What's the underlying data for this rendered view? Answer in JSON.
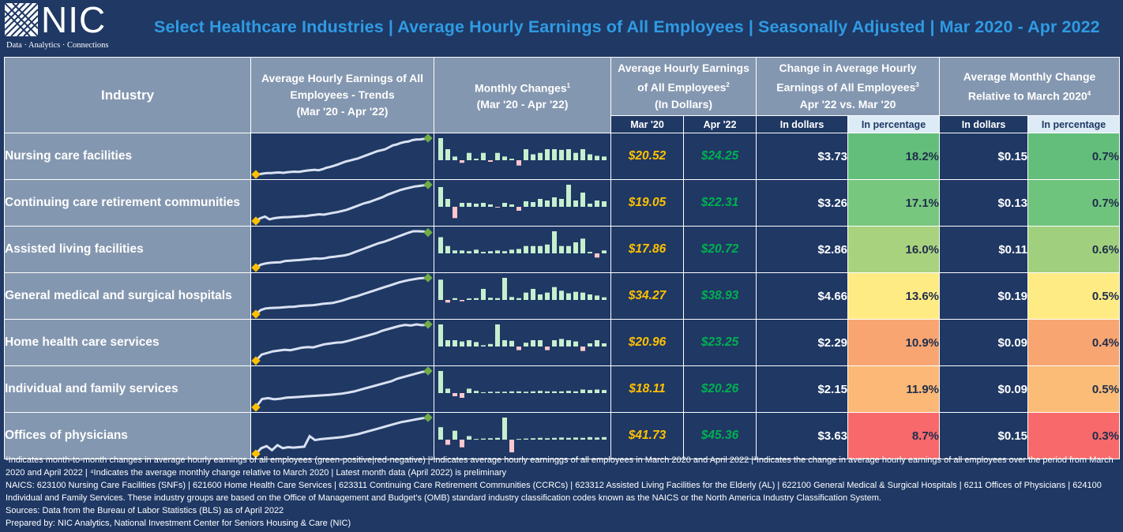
{
  "logo": {
    "name": "NIC",
    "tagline": "Data · Analytics · Connections"
  },
  "title": "Select Healthcare Industries | Average Hourly Earnings of All Employees | Seasonally Adjusted | Mar 2020 - Apr 2022",
  "headers": {
    "industry": "Industry",
    "trends_line1": "Average Hourly Earnings of All",
    "trends_line2": "Employees - Trends",
    "trends_line3": "(Mar '20 - Apr '22)",
    "monthly_line1": "Monthly Changes",
    "monthly_sup": "1",
    "monthly_line2": "(Mar '20 - Apr '22)",
    "avg_line1": "Average Hourly Earnings",
    "avg_line2": "of All Employees",
    "avg_sup": "2",
    "avg_line3": "(In Dollars)",
    "change_line1": "Change in Average Hourly",
    "change_line2": "Earnings of All Employees",
    "change_sup": "3",
    "change_line3": "Apr '22 vs. Mar '20",
    "monthly_change_line1": "Average Monthly Change",
    "monthly_change_line2": "Relative to March 2020",
    "monthly_change_sup": "4",
    "sub_mar": "Mar '20",
    "sub_apr": "Apr '22",
    "sub_dollars": "In dollars",
    "sub_pct": "In percentage",
    "sub_dollars2": "In dollars",
    "sub_pct2": "In percentage"
  },
  "colors": {
    "background": "#1f3864",
    "header_gray": "#8497b0",
    "title_blue": "#2f9be3",
    "mar_gold": "#ffc000",
    "apr_green": "#00b050",
    "bar_positive": "#c6efce",
    "bar_negative": "#ffc7ce",
    "spark_line": "#d9e1f2",
    "start_marker": "#ffc000",
    "end_marker": "#70ad47"
  },
  "rows": [
    {
      "industry": "Nursing care facilities",
      "mar20": "$20.52",
      "apr22": "$24.25",
      "change_dollars": "$3.73",
      "change_pct": "18.2%",
      "change_pct_color": "#63be7b",
      "monthly_dollars": "$0.15",
      "monthly_pct": "0.7%",
      "monthly_pct_color": "#63be7b",
      "trend": [
        20.52,
        20.55,
        20.62,
        20.66,
        20.66,
        20.7,
        20.72,
        20.68,
        20.74,
        20.78,
        20.8,
        20.78,
        20.85,
        20.92,
        20.96,
        21.0,
        20.95,
        21.05,
        21.2,
        21.3,
        21.42,
        21.55,
        21.7,
        21.85,
        21.95,
        22.05,
        22.15,
        22.3,
        22.45,
        22.6,
        22.75,
        22.9,
        23.0,
        23.1,
        23.3,
        23.5,
        23.6,
        23.75,
        23.85,
        23.9,
        24.05,
        24.1,
        24.12,
        24.18,
        24.25
      ],
      "changes": [
        0.3,
        0.15,
        0.05,
        -0.05,
        0.1,
        0.02,
        0.1,
        -0.03,
        0.1,
        0.05,
        0.02,
        -0.1,
        0.15,
        0.08,
        0.1,
        0.15,
        0.15,
        0.14,
        0.15,
        0.1,
        0.15,
        0.08,
        0.06,
        0.05
      ]
    },
    {
      "industry": "Continuing care retirement communities",
      "mar20": "$19.05",
      "apr22": "$22.31",
      "change_dollars": "$3.26",
      "change_pct": "17.1%",
      "change_pct_color": "#78c77e",
      "monthly_dollars": "$0.13",
      "monthly_pct": "0.7%",
      "monthly_pct_color": "#6fc47d",
      "trend": [
        19.05,
        19.3,
        19.45,
        19.2,
        19.3,
        19.35,
        19.38,
        19.4,
        19.42,
        19.45,
        19.48,
        19.5,
        19.55,
        19.6,
        19.65,
        19.62,
        19.7,
        19.78,
        19.85,
        19.95,
        20.05,
        20.2,
        20.35,
        20.5,
        20.65,
        20.75,
        20.9,
        21.05,
        21.2,
        21.4,
        21.55,
        21.7,
        21.85,
        21.95,
        22.05,
        22.15,
        22.2,
        22.25,
        22.31
      ],
      "changes": [
        0.25,
        0.1,
        -0.2,
        0.05,
        0.05,
        0.04,
        0.05,
        0.03,
        -0.01,
        0.05,
        0.03,
        -0.07,
        0.07,
        0.06,
        0.1,
        0.08,
        0.12,
        0.1,
        0.28,
        0.08,
        0.18,
        0.04,
        0.08,
        0.07
      ]
    },
    {
      "industry": "Assisted living facilities",
      "mar20": "$17.86",
      "apr22": "$20.72",
      "change_dollars": "$2.86",
      "change_pct": "16.0%",
      "change_pct_color": "#a9d27f",
      "monthly_dollars": "$0.11",
      "monthly_pct": "0.6%",
      "monthly_pct_color": "#a0d07e",
      "trend": [
        17.86,
        18.1,
        18.2,
        18.25,
        18.28,
        18.3,
        18.4,
        18.42,
        18.45,
        18.48,
        18.52,
        18.55,
        18.6,
        18.58,
        18.62,
        18.7,
        18.75,
        18.8,
        18.85,
        18.95,
        19.1,
        19.25,
        19.4,
        19.55,
        19.7,
        19.85,
        19.95,
        20.1,
        20.25,
        20.4,
        20.55,
        20.7,
        20.82,
        20.82,
        20.8,
        20.72
      ],
      "changes": [
        0.22,
        0.1,
        0.04,
        0.04,
        0.03,
        0.05,
        0.02,
        0.03,
        0.04,
        0.03,
        0.05,
        0.06,
        0.1,
        0.1,
        0.1,
        0.12,
        0.3,
        0.1,
        0.1,
        0.15,
        0.2,
        0.02,
        -0.08,
        0.04
      ]
    },
    {
      "industry": "General medical and surgical hospitals",
      "mar20": "$34.27",
      "apr22": "$38.93",
      "change_dollars": "$4.66",
      "change_pct": "13.6%",
      "change_pct_color": "#ffeb84",
      "monthly_dollars": "$0.19",
      "monthly_pct": "0.5%",
      "monthly_pct_color": "#ffeb84",
      "trend": [
        34.27,
        34.8,
        35.0,
        35.05,
        35.08,
        35.1,
        35.15,
        35.2,
        35.22,
        35.3,
        35.35,
        35.38,
        35.42,
        35.5,
        35.6,
        35.65,
        35.7,
        35.85,
        36.0,
        36.2,
        36.4,
        36.55,
        36.75,
        36.95,
        37.15,
        37.35,
        37.55,
        37.75,
        37.95,
        38.15,
        38.35,
        38.5,
        38.65,
        38.75,
        38.85,
        38.9,
        38.93
      ],
      "changes": [
        0.55,
        -0.1,
        0.05,
        -0.05,
        0.04,
        0.05,
        0.3,
        0.06,
        0.05,
        0.6,
        0.08,
        0.05,
        0.2,
        0.3,
        0.15,
        0.2,
        0.35,
        0.25,
        0.18,
        0.22,
        0.2,
        0.15,
        0.12,
        0.07
      ]
    },
    {
      "industry": "Home health care services",
      "mar20": "$20.96",
      "apr22": "$23.25",
      "change_dollars": "$2.29",
      "change_pct": "10.9%",
      "change_pct_color": "#f8a572",
      "monthly_dollars": "$0.09",
      "monthly_pct": "0.4%",
      "monthly_pct_color": "#f8a572",
      "trend": [
        20.96,
        21.35,
        21.45,
        21.55,
        21.6,
        21.65,
        21.62,
        21.7,
        21.78,
        21.82,
        21.8,
        21.9,
        22.0,
        22.05,
        22.1,
        22.12,
        22.2,
        22.3,
        22.4,
        22.5,
        22.6,
        22.7,
        22.85,
        22.95,
        23.05,
        23.15,
        23.22,
        23.18,
        23.25,
        23.2,
        23.25
      ],
      "changes": [
        0.35,
        0.1,
        0.1,
        0.08,
        0.1,
        0.07,
        0.02,
        0.04,
        0.35,
        0.1,
        0.09,
        -0.08,
        0.06,
        0.1,
        0.1,
        -0.08,
        0.1,
        0.12,
        0.1,
        0.08,
        -0.1,
        0.05,
        0.1,
        0.05
      ]
    },
    {
      "industry": "Individual and family services",
      "mar20": "$18.11",
      "apr22": "$20.26",
      "change_dollars": "$2.15",
      "change_pct": "11.9%",
      "change_pct_color": "#fbb876",
      "monthly_dollars": "$0.09",
      "monthly_pct": "0.5%",
      "monthly_pct_color": "#fbbc77",
      "trend": [
        18.11,
        18.6,
        18.65,
        18.58,
        18.62,
        18.68,
        18.7,
        18.72,
        18.75,
        18.78,
        18.8,
        18.82,
        18.85,
        18.88,
        18.92,
        18.98,
        19.05,
        19.15,
        19.25,
        19.35,
        19.45,
        19.55,
        19.65,
        19.8,
        19.9,
        20.0,
        20.1,
        20.2,
        20.26
      ],
      "changes": [
        0.5,
        0.1,
        -0.1,
        -0.15,
        0.1,
        0.05,
        0.02,
        0.03,
        0.03,
        0.03,
        0.04,
        0.04,
        0.03,
        0.04,
        0.05,
        0.04,
        0.04,
        0.04,
        0.05,
        0.04,
        0.08,
        0.07,
        0.08,
        0.07
      ]
    },
    {
      "industry": "Offices of physicians",
      "mar20": "$41.73",
      "apr22": "$45.36",
      "change_dollars": "$3.63",
      "change_pct": "8.7%",
      "change_pct_color": "#f8696b",
      "monthly_dollars": "$0.15",
      "monthly_pct": "0.3%",
      "monthly_pct_color": "#f8696b",
      "trend": [
        41.73,
        42.3,
        42.5,
        42.1,
        42.6,
        42.3,
        42.4,
        42.35,
        42.4,
        42.45,
        43.5,
        43.1,
        43.2,
        43.25,
        43.3,
        43.35,
        43.4,
        43.5,
        43.6,
        43.7,
        43.85,
        44.0,
        44.15,
        44.3,
        44.45,
        44.6,
        44.75,
        44.9,
        45.0,
        45.1,
        45.2,
        45.3,
        45.36
      ],
      "changes": [
        0.35,
        -0.2,
        0.25,
        -0.3,
        0.1,
        0.02,
        0.03,
        0.04,
        0.05,
        0.62,
        -0.5,
        0.02,
        0.03,
        0.04,
        0.05,
        0.04,
        0.05,
        0.06,
        0.05,
        0.06,
        0.05,
        0.07,
        0.06,
        0.07
      ]
    }
  ],
  "footnotes": [
    "¹Indicates month-to-month changes in average hourly earnings of all employees (green-positive|red-negative) |²Indicates average hourly earninggs of all employees in March 2020 and April 2022 |³Indicates the change in average hourly earnings of all employees over the period from March 2020 and April 2022 | ⁴Indicates the average monthly change relative to March 2020 | Latest month data (April 2022) is preliminary",
    "NAICS: 623100 Nursing Care Facilities (SNFs) | 621600 Home Health Care Services | 623311 Continuing Care Retirement Communities (CCRCs) | 623312 Assisted Living Facilities for the Elderly (AL) | 622100 General Medical & Surgical Hospitals | 6211 Offices of Physicians | 624100 Individual and Family Services. These industry groups are based on the Office of Management and Budget's (OMB) standard industry classification codes known as the NAICS or the North America Industry Classification System.",
    "Sources: Data from the Bureau of Labor Statistics (BLS) as of April 2022",
    "Prepared by: NIC Analytics, National Investment Center for Seniors Housing & Care (NIC)"
  ]
}
